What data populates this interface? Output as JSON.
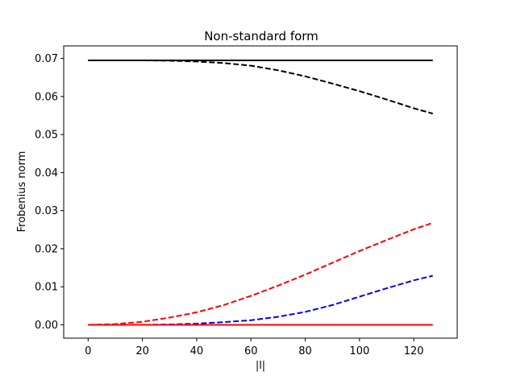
{
  "chart_data": {
    "type": "line",
    "title": "Non-standard form",
    "xlabel": "|l|",
    "ylabel": "Frobenius norm",
    "xlim": [
      -9,
      136
    ],
    "ylim": [
      -0.0035,
      0.0733
    ],
    "xticks": [
      0,
      20,
      40,
      60,
      80,
      100,
      120
    ],
    "yticks": [
      0.0,
      0.01,
      0.02,
      0.03,
      0.04,
      0.05,
      0.06,
      0.07
    ],
    "xtick_labels": [
      "0",
      "20",
      "40",
      "60",
      "80",
      "100",
      "120"
    ],
    "ytick_labels": [
      "0.00",
      "0.01",
      "0.02",
      "0.03",
      "0.04",
      "0.05",
      "0.06",
      "0.07"
    ],
    "grid": false,
    "series": [
      {
        "color": "#000000",
        "linestyle": "solid",
        "x": [
          0,
          127
        ],
        "y": [
          0.0695,
          0.0695
        ]
      },
      {
        "color": "#000000",
        "linestyle": "dashed",
        "x": [
          0,
          10,
          20,
          30,
          40,
          50,
          60,
          70,
          80,
          90,
          100,
          110,
          120,
          127
        ],
        "y": [
          0.0695,
          0.0695,
          0.0695,
          0.0694,
          0.0692,
          0.0688,
          0.0681,
          0.0669,
          0.0653,
          0.0634,
          0.0614,
          0.0592,
          0.0569,
          0.0555
        ]
      },
      {
        "color": "#ff0000",
        "linestyle": "dashed",
        "x": [
          0,
          10,
          20,
          30,
          40,
          50,
          60,
          70,
          80,
          90,
          100,
          110,
          120,
          127
        ],
        "y": [
          0.0,
          0.0002,
          0.0008,
          0.0019,
          0.0033,
          0.0052,
          0.0076,
          0.0103,
          0.0132,
          0.0163,
          0.0194,
          0.0223,
          0.0251,
          0.0268
        ]
      },
      {
        "color": "#0000ff",
        "linestyle": "dashed",
        "x": [
          0,
          10,
          20,
          30,
          40,
          50,
          60,
          70,
          80,
          90,
          100,
          110,
          120,
          127
        ],
        "y": [
          0.0,
          0.0,
          0.0,
          0.0001,
          0.0003,
          0.0007,
          0.0012,
          0.0021,
          0.0034,
          0.0052,
          0.0074,
          0.0096,
          0.0117,
          0.0129
        ]
      },
      {
        "color": "#ff0000",
        "linestyle": "solid",
        "x": [
          0,
          127
        ],
        "y": [
          0.0,
          0.0
        ]
      }
    ]
  }
}
